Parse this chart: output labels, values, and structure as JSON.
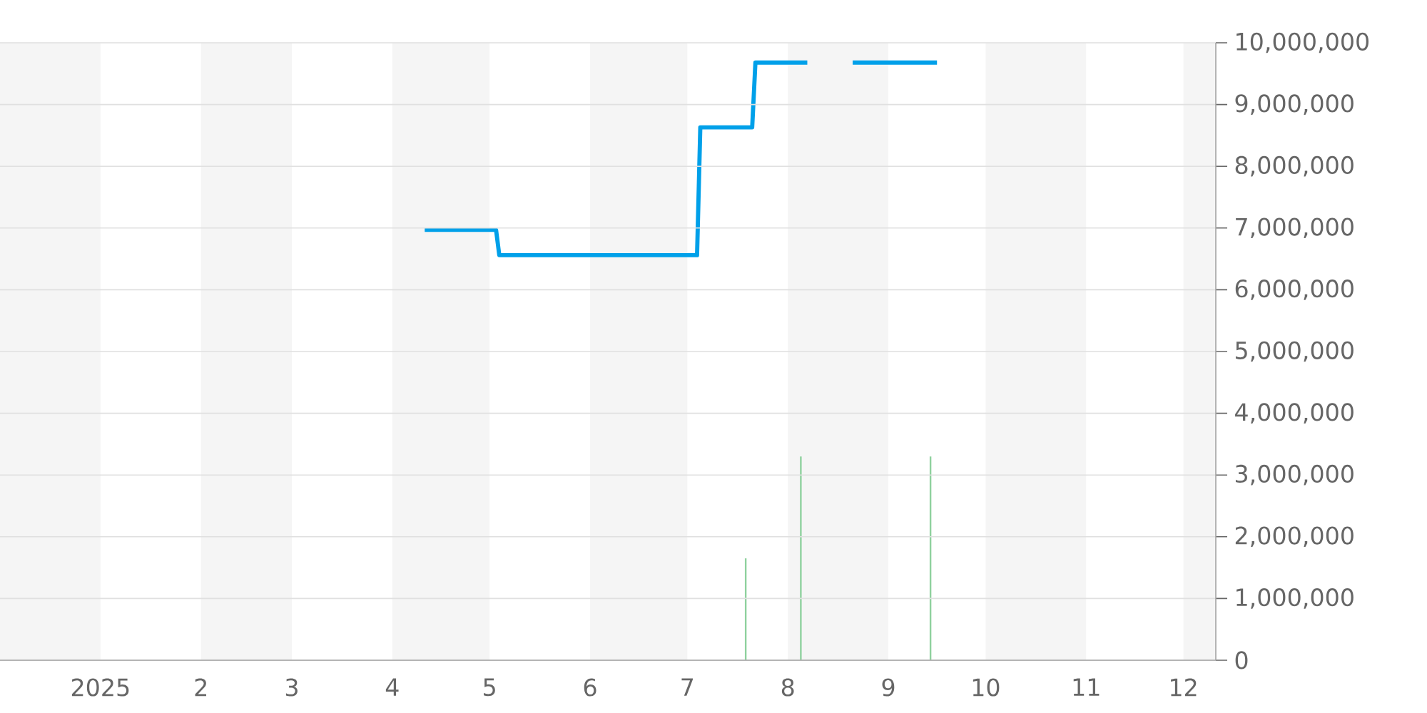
{
  "chart_data": {
    "type": "line",
    "series": [
      {
        "color": "#00a0e9",
        "x": [
          "2025-04-11",
          "2025-05-03",
          "2025-05-04",
          "2025-07-04",
          "2025-07-05",
          "2025-07-21",
          "2025-07-22",
          "2025-08-07",
          "2025-08-14",
          "2025-08-21",
          "2025-09-16"
        ],
        "values": [
          6970000,
          6970000,
          6560000,
          6560000,
          8630000,
          8630000,
          9680000,
          9680000,
          null,
          9680000,
          9680000
        ]
      },
      {
        "type": "bar",
        "color": "#8fd19e",
        "x": [
          "2025-07-19",
          "2025-08-05",
          "2025-09-14"
        ],
        "values": [
          1650000,
          3300000,
          3300000
        ]
      }
    ],
    "xlim": [
      "2024-12-01",
      "2025-12-11"
    ],
    "xticks": [
      {
        "value": "2025-01-01",
        "label": "2025"
      },
      {
        "value": "2025-02-01",
        "label": "2"
      },
      {
        "value": "2025-03-01",
        "label": "3"
      },
      {
        "value": "2025-04-01",
        "label": "4"
      },
      {
        "value": "2025-05-01",
        "label": "5"
      },
      {
        "value": "2025-06-01",
        "label": "6"
      },
      {
        "value": "2025-07-01",
        "label": "7"
      },
      {
        "value": "2025-08-01",
        "label": "8"
      },
      {
        "value": "2025-09-01",
        "label": "9"
      },
      {
        "value": "2025-10-01",
        "label": "10"
      },
      {
        "value": "2025-11-01",
        "label": "11"
      },
      {
        "value": "2025-12-01",
        "label": "12"
      }
    ],
    "ylim": [
      0,
      10000000
    ],
    "yticks": [
      0,
      {
        "value": 1000000,
        "label": "1,000,000"
      },
      {
        "value": 2000000,
        "label": "2,000,000"
      },
      {
        "value": 3000000,
        "label": "3,000,000"
      },
      {
        "value": 4000000,
        "label": "4,000,000"
      },
      {
        "value": 5000000,
        "label": "5,000,000"
      },
      {
        "value": 6000000,
        "label": "6,000,000"
      },
      {
        "value": 7000000,
        "label": "7,000,000"
      },
      {
        "value": 8000000,
        "label": "8,000,000"
      },
      {
        "value": 9000000,
        "label": "9,000,000"
      },
      {
        "value": 10000000,
        "label": "10,000,000"
      }
    ],
    "grid": "y",
    "bands": [
      {
        "axis": "x",
        "from": "2024-12-01",
        "to": "2025-01-01",
        "color": "#f5f5f5"
      },
      {
        "axis": "x",
        "from": "2025-02-01",
        "to": "2025-03-01",
        "color": "#f5f5f5"
      },
      {
        "axis": "x",
        "from": "2025-04-01",
        "to": "2025-05-01",
        "color": "#f5f5f5"
      },
      {
        "axis": "x",
        "from": "2025-06-01",
        "to": "2025-07-01",
        "color": "#f5f5f5"
      },
      {
        "axis": "x",
        "from": "2025-08-01",
        "to": "2025-09-01",
        "color": "#f5f5f5"
      },
      {
        "axis": "x",
        "from": "2025-10-01",
        "to": "2025-11-01",
        "color": "#f5f5f5"
      },
      {
        "axis": "x",
        "from": "2025-12-01",
        "to": "2025-12-11",
        "color": "#f5f5f5"
      }
    ]
  }
}
